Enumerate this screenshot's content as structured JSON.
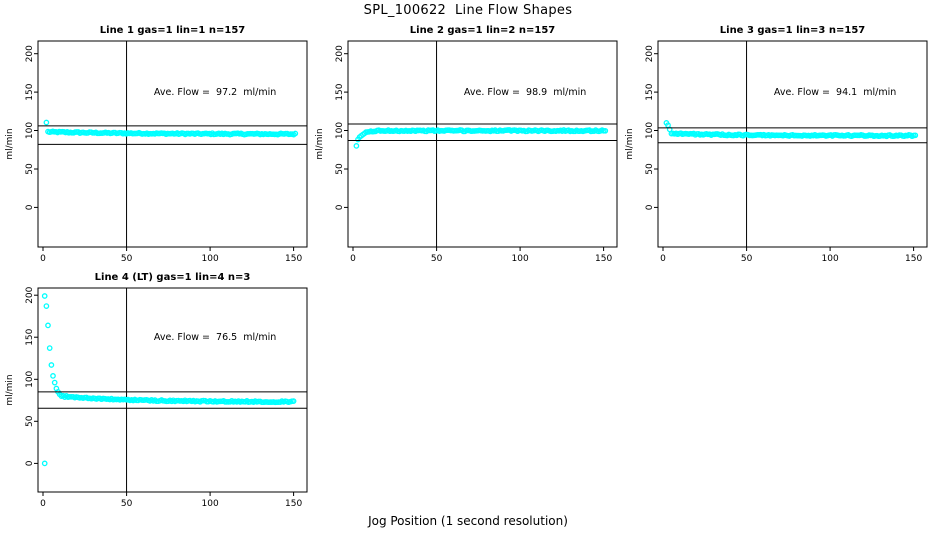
{
  "window": {
    "title": "SPL_100622  Line Flow Shapes"
  },
  "chart_data": {
    "type": "scatter",
    "title": "SPL_100622  Line Flow Shapes",
    "xlabel": "Jog Position (1 second resolution)",
    "ylabel": "ml/min",
    "point_color": "#00ffff",
    "axis_color": "#000000",
    "background": "#ffffff",
    "grid": false,
    "legend": "none",
    "xticks": [
      0,
      50,
      100,
      150
    ],
    "yticks": [
      0,
      50,
      100,
      150,
      200
    ],
    "xlim": [
      -3,
      158
    ],
    "ylim_row1": [
      -51.5,
      216.5
    ],
    "ylim_row2": [
      -34,
      208.5
    ],
    "vline_x": 50,
    "panels": [
      {
        "title": "Line 1 gas=1 lin=1 n=157",
        "n": 157,
        "ave_flow": 97.2,
        "ave_flow_label": "Ave. Flow =  97.2  ml/min",
        "ref_lines": [
          106,
          82
        ],
        "transient_points": [
          [
            2,
            110.5
          ]
        ],
        "band": {
          "x_start": 3,
          "x_end": 151,
          "count": 156,
          "y_start": 98.3,
          "y_end": 95.2,
          "decay": 55,
          "jitter": 0.9
        }
      },
      {
        "title": "Line 2 gas=1 lin=2 n=157",
        "n": 157,
        "ave_flow": 98.9,
        "ave_flow_label": "Ave. Flow =  98.9  ml/min",
        "ref_lines": [
          108.5,
          87
        ],
        "transient_points": [
          [
            2,
            80
          ]
        ],
        "band": {
          "x_start": 3,
          "x_end": 151,
          "count": 156,
          "y_start": 87.5,
          "y_end": 99.8,
          "decay": 3,
          "jitter": 0.9
        }
      },
      {
        "title": "Line 3 gas=1 lin=3 n=157",
        "n": 157,
        "ave_flow": 94.1,
        "ave_flow_label": "Ave. Flow =  94.1  ml/min",
        "ref_lines": [
          103.5,
          84
        ],
        "transient_points": [
          [
            2,
            110
          ],
          [
            3,
            107
          ],
          [
            4,
            101.5
          ]
        ],
        "band": {
          "x_start": 5,
          "x_end": 151,
          "count": 154,
          "y_start": 96.5,
          "y_end": 93.4,
          "decay": 30,
          "jitter": 0.9
        }
      },
      {
        "title": "Line 4 (LT) gas=1 lin=4 n=3",
        "n": 3,
        "ave_flow": 76.5,
        "ave_flow_label": "Ave. Flow =  76.5  ml/min",
        "ref_lines": [
          85,
          65.5
        ],
        "transient_points": [
          [
            1,
            0
          ],
          [
            1,
            199
          ],
          [
            2,
            187
          ],
          [
            3,
            164
          ],
          [
            4,
            137
          ],
          [
            5,
            117
          ],
          [
            6,
            104
          ],
          [
            7,
            96
          ],
          [
            8,
            89
          ],
          [
            9,
            85
          ],
          [
            10,
            82
          ]
        ],
        "band": {
          "x_start": 11,
          "x_end": 150,
          "count": 140,
          "y_start": 80,
          "y_end": 73.2,
          "decay": 38,
          "jitter": 0.8
        }
      }
    ]
  }
}
